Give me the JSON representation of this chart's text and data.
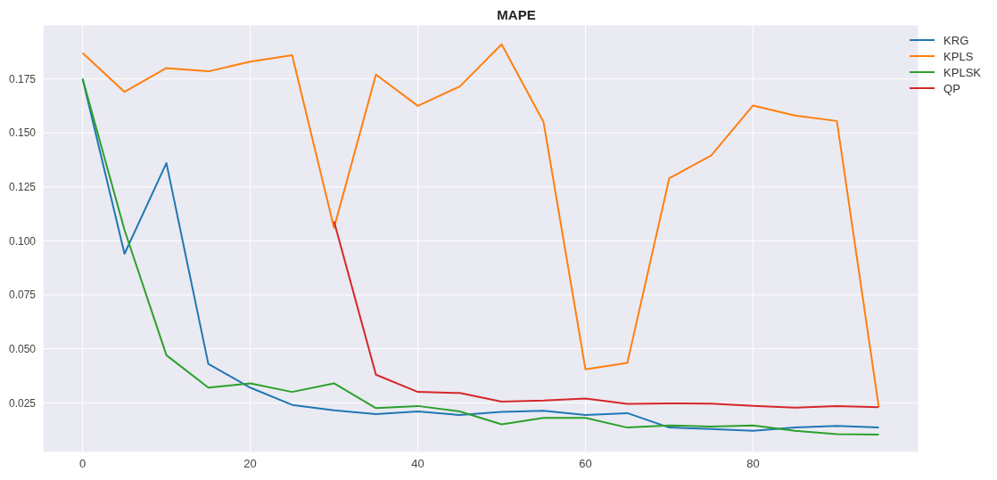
{
  "chart_data": {
    "type": "line",
    "title": "MAPE",
    "x": [
      0,
      5,
      10,
      15,
      20,
      25,
      30,
      35,
      40,
      45,
      50,
      55,
      60,
      65,
      70,
      75,
      80,
      85,
      90,
      95
    ],
    "series": [
      {
        "name": "KRG",
        "color": "#1f77b4",
        "values": [
          0.175,
          0.094,
          0.136,
          0.043,
          0.032,
          0.024,
          0.0215,
          0.0197,
          0.021,
          0.0193,
          0.0208,
          0.0213,
          0.0193,
          0.0202,
          0.0135,
          0.0128,
          0.012,
          0.0135,
          0.0143,
          0.0136
        ]
      },
      {
        "name": "KPLS",
        "color": "#ff7f0e",
        "values": [
          0.187,
          0.169,
          0.18,
          0.1785,
          0.183,
          0.186,
          0.106,
          0.177,
          0.1625,
          0.1715,
          0.191,
          0.155,
          0.0405,
          0.0435,
          0.129,
          0.1395,
          0.1627,
          0.158,
          0.1555,
          0.023
        ]
      },
      {
        "name": "KPLSK",
        "color": "#2ca02c",
        "values": [
          0.175,
          0.105,
          0.047,
          0.032,
          0.034,
          0.03,
          0.034,
          0.0225,
          0.0235,
          0.021,
          0.015,
          0.018,
          0.018,
          0.0135,
          0.0145,
          0.014,
          0.0145,
          0.012,
          0.0105,
          0.0103
        ]
      },
      {
        "name": "QP",
        "color": "#d62728",
        "values": [
          null,
          null,
          null,
          null,
          null,
          null,
          0.109,
          0.038,
          0.03,
          0.0295,
          0.0255,
          0.026,
          0.027,
          0.0245,
          0.0247,
          0.0246,
          0.0236,
          0.0227,
          0.0234,
          0.0229
        ]
      }
    ],
    "xlim": [
      -4.75,
      99.75
    ],
    "xticks": [
      0,
      20,
      40,
      60,
      80
    ],
    "ylim": [
      0.002,
      0.2
    ],
    "yticks": [
      0.025,
      {
        "value": 0.05,
        "label": "0.050"
      },
      0.075,
      {
        "value": 0.1,
        "label": "0.100"
      },
      0.125,
      {
        "value": 0.15,
        "label": "0.150"
      },
      0.175
    ],
    "grid": true,
    "legend": "top right",
    "marker": "none",
    "line_style": "solid"
  }
}
